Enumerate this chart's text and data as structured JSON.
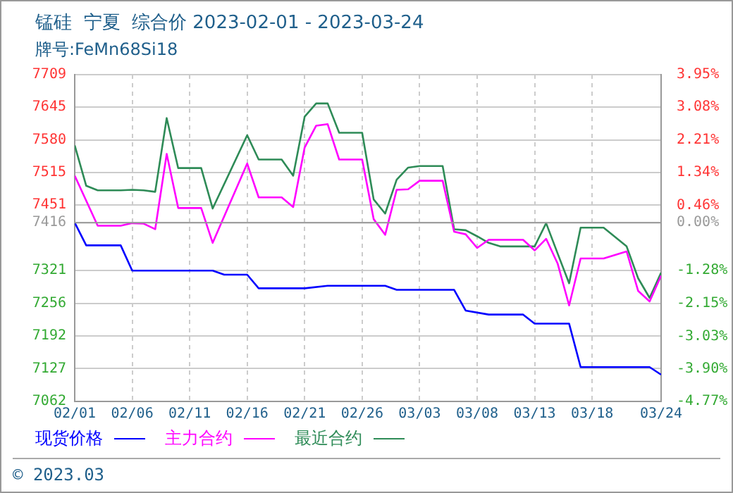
{
  "chart_data": {
    "type": "line",
    "title": "锰硅  宁夏  综合价 2023-02-01 - 2023-03-24",
    "subtitle": "牌号:FeMn68Si18",
    "xlim": [
      "2023-02-01",
      "2023-03-24"
    ],
    "xticks": [
      {
        "value": "2023-02-01",
        "label": "02/01"
      },
      {
        "value": "2023-02-06",
        "label": "02/06"
      },
      {
        "value": "2023-02-11",
        "label": "02/11"
      },
      {
        "value": "2023-02-16",
        "label": "02/16"
      },
      {
        "value": "2023-02-21",
        "label": "02/21"
      },
      {
        "value": "2023-02-26",
        "label": "02/26"
      },
      {
        "value": "2023-03-03",
        "label": "03/03"
      },
      {
        "value": "2023-03-08",
        "label": "03/08"
      },
      {
        "value": "2023-03-13",
        "label": "03/13"
      },
      {
        "value": "2023-03-18",
        "label": "03/18"
      },
      {
        "value": "2023-03-24",
        "label": "03/24"
      }
    ],
    "ylim": [
      7062,
      7709
    ],
    "yticks": [
      7062,
      7127,
      7192,
      7256,
      7321,
      7416,
      7451,
      7515,
      7580,
      7645,
      7709
    ],
    "y2lim": [
      -4.77,
      3.95
    ],
    "y2ticks": [
      {
        "value": -4.77,
        "label": "-4.77%"
      },
      {
        "value": -3.9,
        "label": "-3.90%"
      },
      {
        "value": -3.03,
        "label": "-3.03%"
      },
      {
        "value": -2.15,
        "label": "-2.15%"
      },
      {
        "value": -1.28,
        "label": "-1.28%"
      },
      {
        "value": 0,
        "label": "0.00%"
      },
      {
        "value": 0.46,
        "label": "0.46%"
      },
      {
        "value": 1.34,
        "label": "1.34%"
      },
      {
        "value": 2.21,
        "label": "2.21%"
      },
      {
        "value": 3.08,
        "label": "3.08%"
      },
      {
        "value": 3.95,
        "label": "3.95%"
      }
    ],
    "ref_lines": [
      {
        "axis": "y",
        "value": 7416,
        "color": "#999999"
      }
    ],
    "grid": true,
    "legend": "bottom",
    "series": [
      {
        "name": "现货价格",
        "color": "#0000ff",
        "x": [
          "2023-02-01",
          "2023-02-02",
          "2023-02-05",
          "2023-02-06",
          "2023-02-13",
          "2023-02-14",
          "2023-02-16",
          "2023-02-17",
          "2023-02-21",
          "2023-02-23",
          "2023-02-28",
          "2023-03-01",
          "2023-03-06",
          "2023-03-07",
          "2023-03-09",
          "2023-03-12",
          "2023-03-13",
          "2023-03-16",
          "2023-03-17",
          "2023-03-23",
          "2023-03-24"
        ],
        "values": [
          7416,
          7371,
          7371,
          7321,
          7321,
          7313,
          7313,
          7286,
          7286,
          7291,
          7291,
          7283,
          7283,
          7242,
          7234,
          7234,
          7216,
          7216,
          7130,
          7130,
          7115
        ]
      },
      {
        "name": "主力合约",
        "color": "#ff00ff",
        "x": [
          "2023-02-01",
          "2023-02-03",
          "2023-02-05",
          "2023-02-06",
          "2023-02-07",
          "2023-02-08",
          "2023-02-09",
          "2023-02-10",
          "2023-02-12",
          "2023-02-13",
          "2023-02-16",
          "2023-02-17",
          "2023-02-19",
          "2023-02-20",
          "2023-02-21",
          "2023-02-22",
          "2023-02-23",
          "2023-02-24",
          "2023-02-26",
          "2023-02-27",
          "2023-02-28",
          "2023-03-01",
          "2023-03-02",
          "2023-03-03",
          "2023-03-05",
          "2023-03-06",
          "2023-03-07",
          "2023-03-08",
          "2023-03-09",
          "2023-03-12",
          "2023-03-13",
          "2023-03-14",
          "2023-03-15",
          "2023-03-16",
          "2023-03-17",
          "2023-03-19",
          "2023-03-21",
          "2023-03-22",
          "2023-03-23",
          "2023-03-24"
        ],
        "values": [
          7509,
          7410,
          7410,
          7415,
          7414,
          7403,
          7552,
          7445,
          7445,
          7376,
          7533,
          7466,
          7466,
          7447,
          7565,
          7608,
          7611,
          7541,
          7541,
          7423,
          7392,
          7481,
          7482,
          7499,
          7499,
          7398,
          7393,
          7366,
          7382,
          7382,
          7361,
          7384,
          7335,
          7252,
          7345,
          7345,
          7359,
          7281,
          7260,
          7311
        ]
      },
      {
        "name": "最近合约",
        "color": "#2e8b57",
        "x": [
          "2023-02-01",
          "2023-02-02",
          "2023-02-03",
          "2023-02-05",
          "2023-02-06",
          "2023-02-07",
          "2023-02-08",
          "2023-02-09",
          "2023-02-10",
          "2023-02-12",
          "2023-02-13",
          "2023-02-16",
          "2023-02-17",
          "2023-02-19",
          "2023-02-20",
          "2023-02-21",
          "2023-02-22",
          "2023-02-23",
          "2023-02-24",
          "2023-02-26",
          "2023-02-27",
          "2023-02-28",
          "2023-03-01",
          "2023-03-02",
          "2023-03-03",
          "2023-03-05",
          "2023-03-06",
          "2023-03-07",
          "2023-03-08",
          "2023-03-09",
          "2023-03-10",
          "2023-03-13",
          "2023-03-14",
          "2023-03-15",
          "2023-03-16",
          "2023-03-17",
          "2023-03-19",
          "2023-03-21",
          "2023-03-22",
          "2023-03-23",
          "2023-03-24"
        ],
        "values": [
          7569,
          7489,
          7480,
          7480,
          7481,
          7480,
          7477,
          7623,
          7524,
          7524,
          7444,
          7589,
          7541,
          7541,
          7509,
          7626,
          7652,
          7652,
          7594,
          7594,
          7462,
          7434,
          7501,
          7525,
          7528,
          7528,
          7403,
          7401,
          7389,
          7376,
          7369,
          7369,
          7415,
          7355,
          7296,
          7406,
          7406,
          7369,
          7306,
          7267,
          7317
        ]
      }
    ],
    "annotations": [
      "© 2023.03"
    ]
  }
}
